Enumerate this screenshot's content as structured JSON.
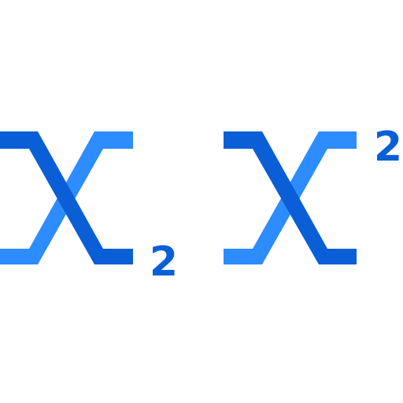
{
  "icons": {
    "subscript": {
      "name": "subscript-icon",
      "exponent_text": "2",
      "colors": {
        "dark_stroke": "#0a5fd6",
        "light_stroke": "#2d8cff",
        "digit": "#0a5fd6"
      }
    },
    "superscript": {
      "name": "superscript-icon",
      "exponent_text": "2",
      "colors": {
        "dark_stroke": "#0a5fd6",
        "light_stroke": "#2d8cff",
        "digit": "#0a5fd6"
      }
    }
  },
  "background": "#ffffff"
}
